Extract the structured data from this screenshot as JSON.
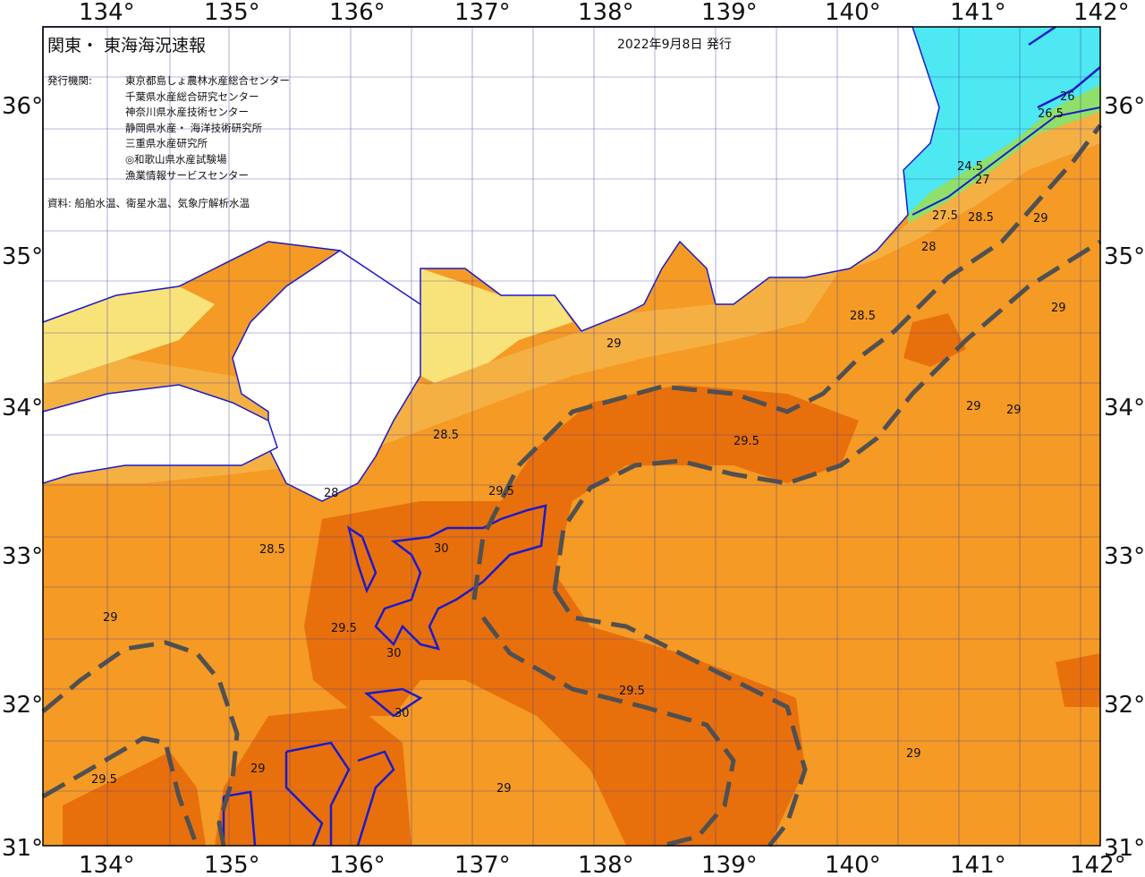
{
  "map": {
    "title": "関東・ 東海海況速報",
    "issue_date": "2022年9月8日 発行",
    "issuers_label": "発行機関:",
    "issuers": [
      "東京都島しょ農林水産総合センター",
      "千葉県水産総合研究センター",
      "神奈川県水産技術センター",
      "静岡県水産・ 海洋技術研究所",
      "三重県水産研究所",
      "◎和歌山県水産試験場",
      "漁業情報サービスセンター"
    ],
    "source": "資料: 船舶水温、衛星水温、気象庁解析水温",
    "longitude_labels": [
      "134°",
      "135°",
      "136°",
      "137°",
      "138°",
      "139°",
      "140°",
      "141°",
      "142°"
    ],
    "latitude_labels": [
      "36°",
      "35°",
      "34°",
      "33°",
      "32°",
      "31°"
    ],
    "contour_labels": [
      "24.5",
      "26",
      "26.5",
      "27",
      "27.5",
      "28",
      "28.5",
      "29",
      "29.5",
      "30"
    ],
    "colors": {
      "sea_29_5": "#f49a25",
      "sea_30": "#e8700c",
      "sea_28_5": "#f5b044",
      "sea_warm_27": "#f7c85a",
      "coast_yellow": "#f8e27a",
      "cool_green": "#8fe06a",
      "cold_cyan": "#4de8f2",
      "kuroshio_axis": "#505050",
      "isotherm_blue": "#1a1acc",
      "land": "#ffffff"
    }
  }
}
